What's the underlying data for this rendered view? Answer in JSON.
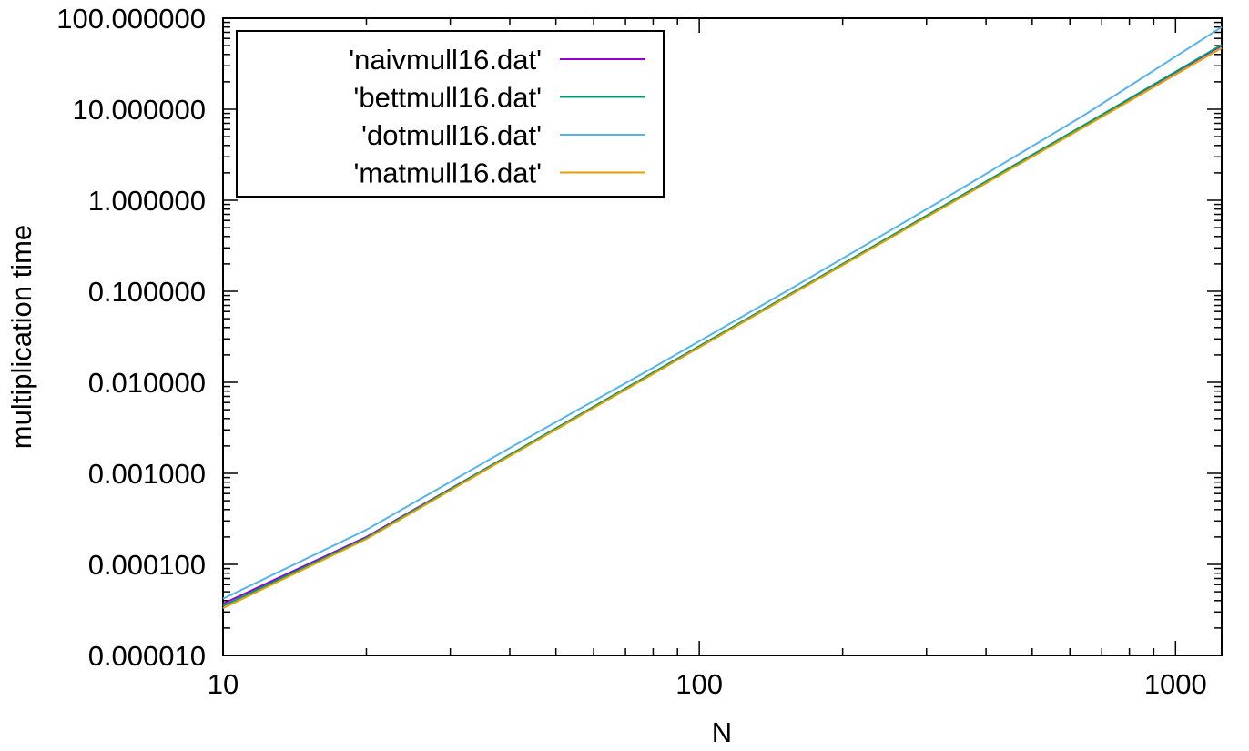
{
  "chart_data": {
    "type": "line",
    "title": "",
    "xlabel": "N",
    "ylabel": "multiplication time",
    "xscale": "log",
    "yscale": "log",
    "xlim": [
      10,
      1250
    ],
    "ylim": [
      1e-05,
      100
    ],
    "grid": false,
    "legend_position": "top-left",
    "x_ticks": [
      {
        "value": 10,
        "label": "10"
      },
      {
        "value": 100,
        "label": "100"
      },
      {
        "value": 1000,
        "label": "1000"
      }
    ],
    "y_ticks": [
      {
        "value": 1e-05,
        "label": "0.000010"
      },
      {
        "value": 0.0001,
        "label": "0.000100"
      },
      {
        "value": 0.001,
        "label": "0.001000"
      },
      {
        "value": 0.01,
        "label": "0.010000"
      },
      {
        "value": 0.1,
        "label": "0.100000"
      },
      {
        "value": 1,
        "label": "1.000000"
      },
      {
        "value": 10,
        "label": "10.000000"
      },
      {
        "value": 100,
        "label": "100.000000"
      }
    ],
    "x": [
      10,
      20,
      40,
      80,
      160,
      320,
      640,
      1250
    ],
    "series": [
      {
        "name": "'naivmull16.dat'",
        "color": "#9400d3",
        "values": [
          3.7e-05,
          0.0002,
          0.0016,
          0.0128,
          0.102,
          0.82,
          6.6,
          50
        ]
      },
      {
        "name": "'bettmull16.dat'",
        "color": "#009e73",
        "values": [
          3.5e-05,
          0.000195,
          0.0016,
          0.0128,
          0.102,
          0.82,
          6.6,
          51
        ]
      },
      {
        "name": "'dotmull16.dat'",
        "color": "#56b4e9",
        "values": [
          4.2e-05,
          0.00024,
          0.0019,
          0.0145,
          0.116,
          0.97,
          8.5,
          80
        ]
      },
      {
        "name": "'matmull16.dat'",
        "color": "#e69f00",
        "values": [
          3.3e-05,
          0.00019,
          0.00155,
          0.0124,
          0.099,
          0.79,
          6.3,
          47
        ]
      }
    ]
  }
}
